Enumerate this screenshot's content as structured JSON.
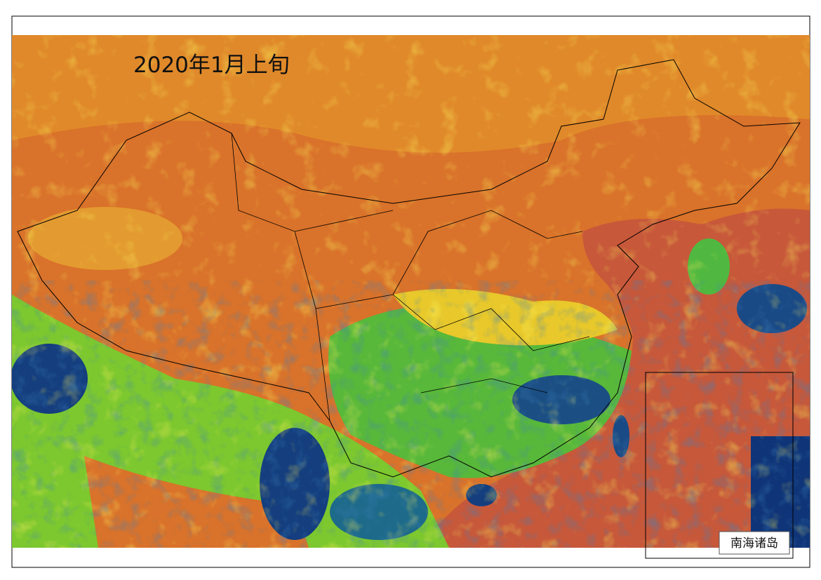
{
  "map": {
    "title": "2020年1月上旬",
    "inset_label": "南海诸岛"
  }
}
